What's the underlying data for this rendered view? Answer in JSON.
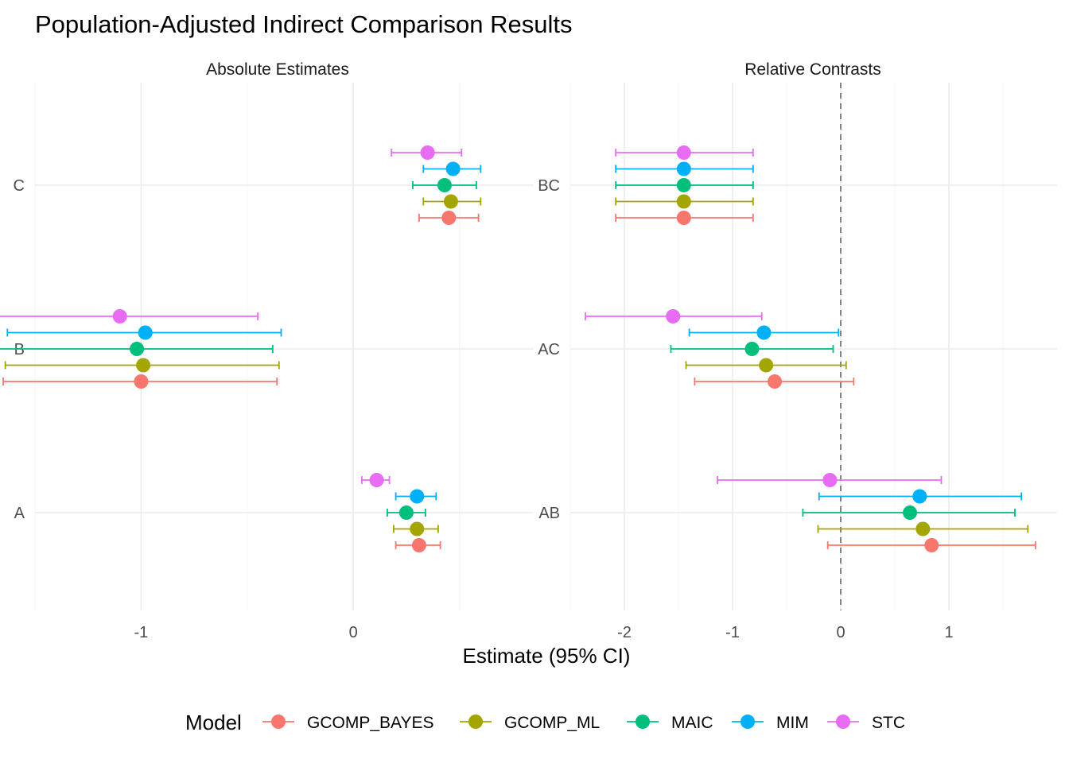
{
  "chart_data": {
    "type": "forest",
    "title": "Population-Adjusted Indirect Comparison Results",
    "xlabel": "Estimate (95% CI)",
    "legend": {
      "title": "Model",
      "position": "bottom"
    },
    "models": [
      "GCOMP_BAYES",
      "GCOMP_ML",
      "MAIC",
      "MIM",
      "STC"
    ],
    "colors": {
      "GCOMP_BAYES": "#F8766D",
      "GCOMP_ML": "#A3A500",
      "MAIC": "#00BF7D",
      "MIM": "#00B0F6",
      "STC": "#E76BF3"
    },
    "panels": [
      {
        "strip": "Absolute Estimates",
        "xlim": [
          -1.5,
          0.85
        ],
        "xticks": [
          -1,
          0
        ],
        "reference_line": null,
        "categories": [
          "A",
          "B",
          "C"
        ],
        "points": [
          {
            "category": "A",
            "model": "GCOMP_BAYES",
            "est": 0.31,
            "lo": 0.2,
            "hi": 0.41
          },
          {
            "category": "A",
            "model": "GCOMP_ML",
            "est": 0.3,
            "lo": 0.19,
            "hi": 0.4
          },
          {
            "category": "A",
            "model": "MAIC",
            "est": 0.25,
            "lo": 0.16,
            "hi": 0.34
          },
          {
            "category": "A",
            "model": "MIM",
            "est": 0.3,
            "lo": 0.2,
            "hi": 0.39
          },
          {
            "category": "A",
            "model": "STC",
            "est": 0.11,
            "lo": 0.04,
            "hi": 0.17
          },
          {
            "category": "B",
            "model": "GCOMP_BAYES",
            "est": -1.0,
            "lo": -1.65,
            "hi": -0.36
          },
          {
            "category": "B",
            "model": "GCOMP_ML",
            "est": -0.99,
            "lo": -1.64,
            "hi": -0.35
          },
          {
            "category": "B",
            "model": "MAIC",
            "est": -1.02,
            "lo": -1.67,
            "hi": -0.38
          },
          {
            "category": "B",
            "model": "MIM",
            "est": -0.98,
            "lo": -1.63,
            "hi": -0.34
          },
          {
            "category": "B",
            "model": "STC",
            "est": -1.1,
            "lo": -1.76,
            "hi": -0.45
          },
          {
            "category": "C",
            "model": "GCOMP_BAYES",
            "est": 0.45,
            "lo": 0.31,
            "hi": 0.59
          },
          {
            "category": "C",
            "model": "GCOMP_ML",
            "est": 0.46,
            "lo": 0.33,
            "hi": 0.6
          },
          {
            "category": "C",
            "model": "MAIC",
            "est": 0.43,
            "lo": 0.28,
            "hi": 0.58
          },
          {
            "category": "C",
            "model": "MIM",
            "est": 0.47,
            "lo": 0.33,
            "hi": 0.6
          },
          {
            "category": "C",
            "model": "STC",
            "est": 0.35,
            "lo": 0.18,
            "hi": 0.51
          }
        ]
      },
      {
        "strip": "Relative Contrasts",
        "xlim": [
          -2.5,
          2.0
        ],
        "xticks": [
          -2,
          -1,
          0,
          1
        ],
        "reference_line": 0,
        "categories": [
          "AB",
          "AC",
          "BC"
        ],
        "points": [
          {
            "category": "AB",
            "model": "GCOMP_BAYES",
            "est": 0.84,
            "lo": -0.12,
            "hi": 1.8
          },
          {
            "category": "AB",
            "model": "GCOMP_ML",
            "est": 0.76,
            "lo": -0.21,
            "hi": 1.73
          },
          {
            "category": "AB",
            "model": "MAIC",
            "est": 0.64,
            "lo": -0.35,
            "hi": 1.61
          },
          {
            "category": "AB",
            "model": "MIM",
            "est": 0.73,
            "lo": -0.2,
            "hi": 1.67
          },
          {
            "category": "AB",
            "model": "STC",
            "est": -0.1,
            "lo": -1.14,
            "hi": 0.93
          },
          {
            "category": "AC",
            "model": "GCOMP_BAYES",
            "est": -0.61,
            "lo": -1.35,
            "hi": 0.12
          },
          {
            "category": "AC",
            "model": "GCOMP_ML",
            "est": -0.69,
            "lo": -1.43,
            "hi": 0.05
          },
          {
            "category": "AC",
            "model": "MAIC",
            "est": -0.82,
            "lo": -1.57,
            "hi": -0.07
          },
          {
            "category": "AC",
            "model": "MIM",
            "est": -0.71,
            "lo": -1.4,
            "hi": -0.02
          },
          {
            "category": "AC",
            "model": "STC",
            "est": -1.55,
            "lo": -2.36,
            "hi": -0.73
          },
          {
            "category": "BC",
            "model": "GCOMP_BAYES",
            "est": -1.45,
            "lo": -2.08,
            "hi": -0.81
          },
          {
            "category": "BC",
            "model": "GCOMP_ML",
            "est": -1.45,
            "lo": -2.08,
            "hi": -0.81
          },
          {
            "category": "BC",
            "model": "MAIC",
            "est": -1.45,
            "lo": -2.08,
            "hi": -0.81
          },
          {
            "category": "BC",
            "model": "MIM",
            "est": -1.45,
            "lo": -2.08,
            "hi": -0.81
          },
          {
            "category": "BC",
            "model": "STC",
            "est": -1.45,
            "lo": -2.08,
            "hi": -0.81
          }
        ]
      }
    ]
  }
}
